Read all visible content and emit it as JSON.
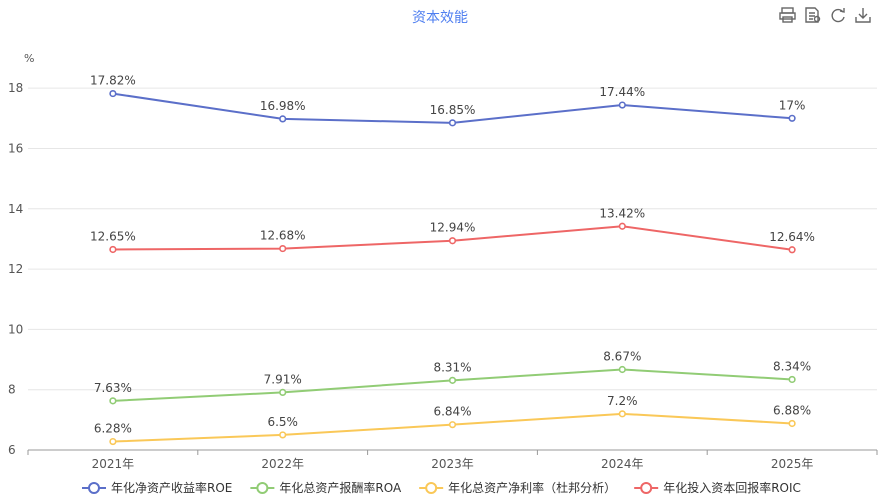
{
  "chart_data": {
    "type": "line",
    "title": "资本效能",
    "ylabel": "%",
    "xlabel": "",
    "categories": [
      "2021年",
      "2022年",
      "2023年",
      "2024年",
      "2025年"
    ],
    "ylim": [
      6,
      19
    ],
    "yticks": [
      6,
      8,
      10,
      12,
      14,
      16,
      18
    ],
    "grid": true,
    "legend_position": "bottom",
    "series": [
      {
        "name": "年化净资产收益率ROE",
        "color": "#5b6fc9",
        "values": [
          17.82,
          16.98,
          16.85,
          17.44,
          17
        ],
        "labels": [
          "17.82%",
          "16.98%",
          "16.85%",
          "17.44%",
          "17%"
        ]
      },
      {
        "name": "年化总资产报酬率ROA",
        "color": "#91cc75",
        "values": [
          7.63,
          7.91,
          8.31,
          8.67,
          8.34
        ],
        "labels": [
          "7.63%",
          "7.91%",
          "8.31%",
          "8.67%",
          "8.34%"
        ]
      },
      {
        "name": "年化总资产净利率（杜邦分析）",
        "color": "#fac858",
        "values": [
          6.28,
          6.5,
          6.84,
          7.2,
          6.88
        ],
        "labels": [
          "6.28%",
          "6.5%",
          "6.84%",
          "7.2%",
          "6.88%"
        ]
      },
      {
        "name": "年化投入资本回报率ROIC",
        "color": "#ee6666",
        "values": [
          12.65,
          12.68,
          12.94,
          13.42,
          12.64
        ],
        "labels": [
          "12.65%",
          "12.68%",
          "12.94%",
          "13.42%",
          "12.64%"
        ]
      }
    ]
  },
  "toolbar": {
    "icons": [
      "print-icon",
      "data-view-icon",
      "refresh-icon",
      "download-icon"
    ]
  }
}
